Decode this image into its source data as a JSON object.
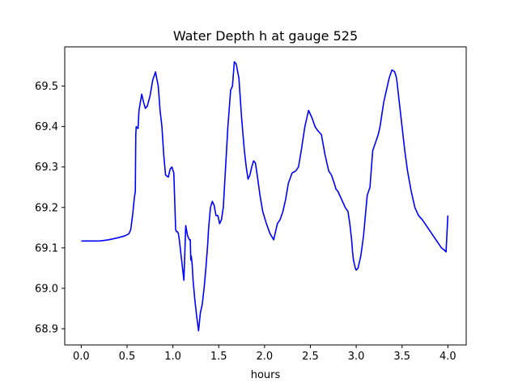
{
  "chart_data": {
    "type": "line",
    "title": "Water Depth h at gauge 525",
    "xlabel": "hours",
    "ylabel": "",
    "xlim": [
      -0.18,
      4.2
    ],
    "ylim": [
      68.86,
      69.597
    ],
    "xticks": [
      0.0,
      0.5,
      1.0,
      1.5,
      2.0,
      2.5,
      3.0,
      3.5,
      4.0
    ],
    "xtick_labels": [
      "0.0",
      "0.5",
      "1.0",
      "1.5",
      "2.0",
      "2.5",
      "3.0",
      "3.5",
      "4.0"
    ],
    "yticks": [
      68.9,
      69.0,
      69.1,
      69.2,
      69.3,
      69.4,
      69.5
    ],
    "ytick_labels": [
      "68.9",
      "69.0",
      "69.1",
      "69.2",
      "69.3",
      "69.4",
      "69.5"
    ],
    "grid": false,
    "series": [
      {
        "color": "#0000ff",
        "x": [
          0.0,
          0.2,
          0.3,
          0.4,
          0.48,
          0.52,
          0.54,
          0.56,
          0.58,
          0.59,
          0.595,
          0.6,
          0.62,
          0.63,
          0.66,
          0.68,
          0.7,
          0.72,
          0.75,
          0.78,
          0.81,
          0.84,
          0.86,
          0.88,
          0.9,
          0.92,
          0.95,
          0.97,
          0.99,
          1.01,
          1.03,
          1.04,
          1.05,
          1.06,
          1.07,
          1.08,
          1.1,
          1.12,
          1.14,
          1.16,
          1.18,
          1.19,
          1.195,
          1.2,
          1.21,
          1.22,
          1.24,
          1.26,
          1.28,
          1.3,
          1.32,
          1.34,
          1.36,
          1.38,
          1.39,
          1.41,
          1.43,
          1.45,
          1.47,
          1.49,
          1.51,
          1.53,
          1.55,
          1.57,
          1.6,
          1.63,
          1.65,
          1.67,
          1.69,
          1.72,
          1.75,
          1.78,
          1.8,
          1.82,
          1.84,
          1.86,
          1.88,
          1.9,
          1.92,
          1.95,
          1.98,
          2.02,
          2.06,
          2.1,
          2.14,
          2.17,
          2.2,
          2.23,
          2.26,
          2.3,
          2.34,
          2.37,
          2.4,
          2.44,
          2.48,
          2.52,
          2.55,
          2.58,
          2.62,
          2.66,
          2.7,
          2.73,
          2.76,
          2.78,
          2.8,
          2.84,
          2.88,
          2.91,
          2.93,
          2.95,
          2.96,
          2.97,
          2.98,
          2.99,
          3.0,
          3.02,
          3.05,
          3.08,
          3.1,
          3.12,
          3.15,
          3.18,
          3.21,
          3.24,
          3.26,
          3.28,
          3.3,
          3.33,
          3.36,
          3.39,
          3.42,
          3.44,
          3.46,
          3.48,
          3.5,
          3.53,
          3.56,
          3.6,
          3.64,
          3.68,
          3.72,
          3.75,
          3.78,
          3.81,
          3.84,
          3.87,
          3.9,
          3.93,
          3.96,
          3.98,
          4.0
        ],
        "y": [
          69.117,
          69.117,
          69.12,
          69.125,
          69.13,
          69.135,
          69.145,
          69.18,
          69.225,
          69.24,
          69.38,
          69.4,
          69.395,
          69.44,
          69.48,
          69.46,
          69.445,
          69.45,
          69.475,
          69.515,
          69.535,
          69.5,
          69.44,
          69.4,
          69.33,
          69.28,
          69.275,
          69.295,
          69.3,
          69.285,
          69.145,
          69.14,
          69.14,
          69.135,
          69.12,
          69.1,
          69.06,
          69.02,
          69.155,
          69.13,
          69.12,
          69.12,
          69.07,
          69.08,
          69.06,
          69.02,
          68.97,
          68.93,
          68.895,
          68.94,
          68.96,
          69.0,
          69.05,
          69.11,
          69.15,
          69.2,
          69.215,
          69.205,
          69.18,
          69.18,
          69.16,
          69.17,
          69.2,
          69.28,
          69.4,
          69.49,
          69.5,
          69.56,
          69.555,
          69.52,
          69.42,
          69.34,
          69.3,
          69.27,
          69.28,
          69.3,
          69.315,
          69.31,
          69.28,
          69.23,
          69.19,
          69.16,
          69.135,
          69.12,
          69.16,
          69.17,
          69.19,
          69.22,
          69.26,
          69.285,
          69.29,
          69.3,
          69.34,
          69.4,
          69.44,
          69.42,
          69.4,
          69.39,
          69.38,
          69.33,
          69.29,
          69.28,
          69.26,
          69.245,
          69.24,
          69.22,
          69.2,
          69.19,
          69.16,
          69.12,
          69.09,
          69.07,
          69.06,
          69.05,
          69.045,
          69.05,
          69.08,
          69.13,
          69.18,
          69.23,
          69.25,
          69.34,
          69.36,
          69.38,
          69.4,
          69.43,
          69.46,
          69.49,
          69.52,
          69.54,
          69.535,
          69.52,
          69.48,
          69.44,
          69.4,
          69.34,
          69.29,
          69.24,
          69.2,
          69.18,
          69.17,
          69.16,
          69.15,
          69.14,
          69.13,
          69.12,
          69.11,
          69.1,
          69.095,
          69.09,
          69.18
        ]
      }
    ]
  }
}
